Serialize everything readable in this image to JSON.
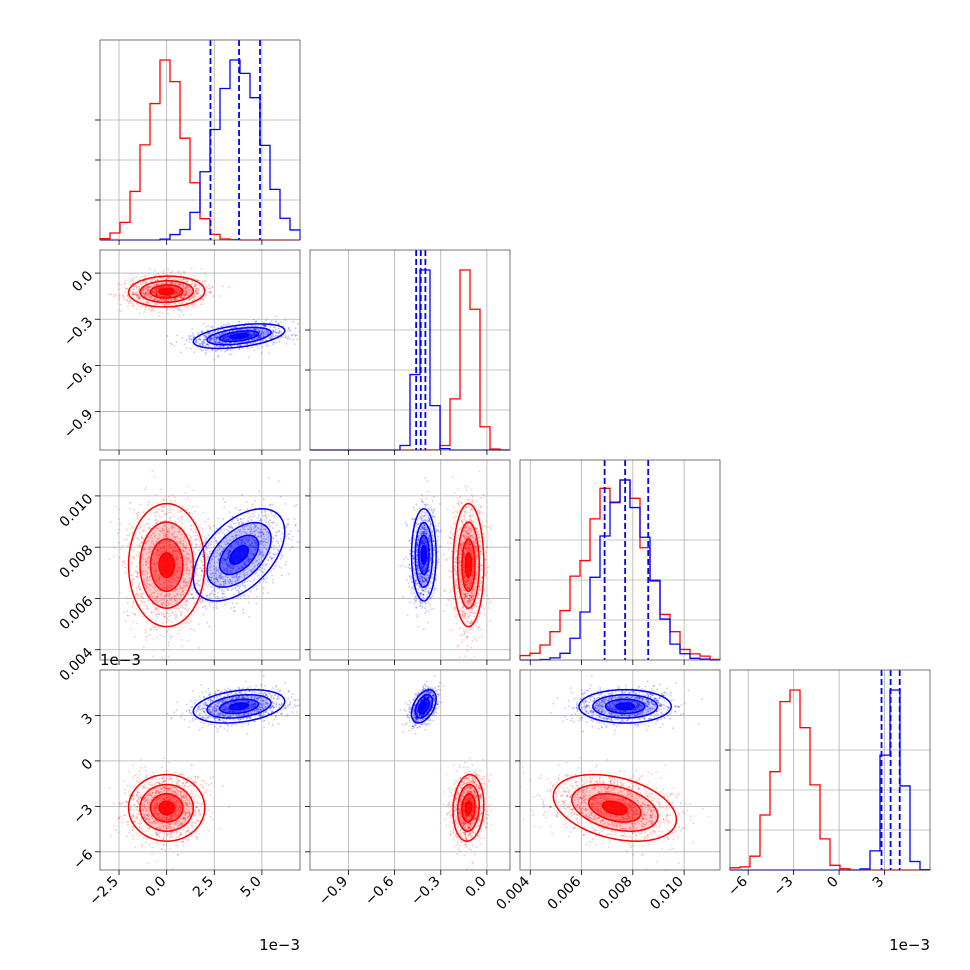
{
  "chart_data": {
    "type": "corner",
    "grid": true,
    "colors": {
      "series_a": "#ff0000",
      "series_b": "#0000ff"
    },
    "parameters": [
      {
        "range": [
          -3.5,
          7.0
        ],
        "ticks": [
          -2.5,
          0.0,
          2.5,
          5.0
        ],
        "tick_labels": [
          "−2.5",
          "0.0",
          "2.5",
          "5.0"
        ],
        "offset_label": "1e−3",
        "y_offset_label": ""
      },
      {
        "range": [
          -1.15,
          0.15
        ],
        "ticks": [
          -0.9,
          -0.6,
          -0.3,
          0.0
        ],
        "tick_labels": [
          "−0.9",
          "−0.6",
          "−0.3",
          "0.0"
        ],
        "offset_label": "",
        "y_offset_label": ""
      },
      {
        "range": [
          0.0036,
          0.0114
        ],
        "ticks": [
          0.004,
          0.006,
          0.008,
          0.01
        ],
        "tick_labels": [
          "0.004",
          "0.006",
          "0.008",
          "0.010"
        ],
        "offset_label": "",
        "y_offset_label": ""
      },
      {
        "range": [
          -7.2,
          6.0
        ],
        "ticks": [
          -6,
          -3,
          0,
          3
        ],
        "tick_labels": [
          "−6",
          "−3",
          "0",
          "3"
        ],
        "offset_label": "1e−3",
        "y_offset_label": "1e−3"
      }
    ],
    "series": [
      {
        "color": "#ff0000",
        "mean": [
          0.0,
          -0.12,
          0.0073,
          -3.1
        ],
        "sd": [
          1.0,
          0.05,
          0.0012,
          1.1
        ],
        "corr": [
          [
            1,
            0.05,
            0,
            0
          ],
          [
            0.05,
            1,
            0,
            0.1
          ],
          [
            0,
            0,
            1,
            -0.35
          ],
          [
            0,
            0.1,
            -0.35,
            1
          ]
        ],
        "quantiles": [
          [],
          [],
          [],
          []
        ]
      },
      {
        "color": "#0000ff",
        "mean": [
          3.8,
          -0.41,
          0.0077,
          3.6
        ],
        "sd": [
          1.2,
          0.04,
          0.0009,
          0.55
        ],
        "corr": [
          [
            1,
            0.45,
            0.5,
            0.3
          ],
          [
            0.45,
            1,
            0,
            0.45
          ],
          [
            0.5,
            0,
            1,
            0
          ],
          [
            0.3,
            0.45,
            0,
            1
          ]
        ],
        "quantiles": [
          [
            2.3,
            3.8,
            4.9
          ],
          [
            -0.46,
            -0.43,
            -0.4
          ],
          [
            0.0069,
            0.0077,
            0.0086
          ],
          [
            2.8,
            3.4,
            4.0
          ]
        ]
      }
    ]
  }
}
